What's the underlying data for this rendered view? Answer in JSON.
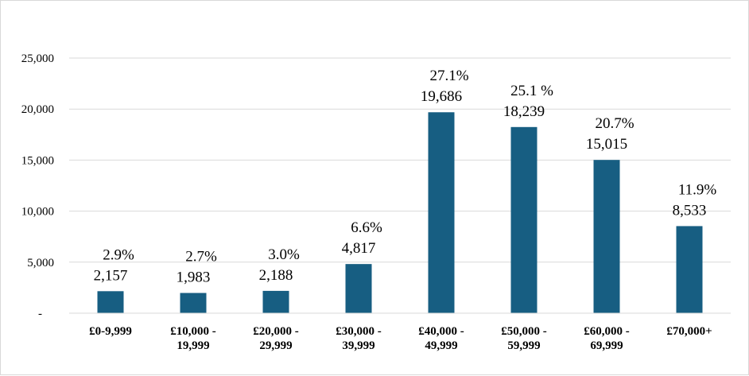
{
  "chart_data": {
    "type": "bar",
    "categories": [
      [
        "£0-9,999"
      ],
      [
        "£10,000 -",
        "19,999"
      ],
      [
        "£20,000 -",
        "29,999"
      ],
      [
        "£30,000 -",
        "39,999"
      ],
      [
        "£40,000 -",
        "49,999"
      ],
      [
        "£50,000 -",
        "59,999"
      ],
      [
        "£60,000 -",
        "69,999"
      ],
      [
        "£70,000+"
      ]
    ],
    "values": [
      2157,
      1983,
      2188,
      4817,
      19686,
      18239,
      15015,
      8533
    ],
    "value_labels": [
      "2,157",
      "1,983",
      "2,188",
      "4,817",
      "19,686",
      "18,239",
      "15,015",
      "8,533"
    ],
    "percent_labels": [
      "2.9%",
      "2.7%",
      "3.0%",
      "6.6%",
      "27.1%",
      "25.1 %",
      "20.7%",
      "11.9%"
    ],
    "ylim": [
      0,
      25000
    ],
    "yticks": [
      0,
      5000,
      10000,
      15000,
      20000,
      25000
    ],
    "ytick_labels": [
      "-",
      "5,000",
      "10,000",
      "15,000",
      "20,000",
      "25,000"
    ],
    "grid": true,
    "title": "",
    "xlabel": "",
    "ylabel": "",
    "bar_color": "#175e82",
    "grid_color": "#d9d9d9"
  }
}
